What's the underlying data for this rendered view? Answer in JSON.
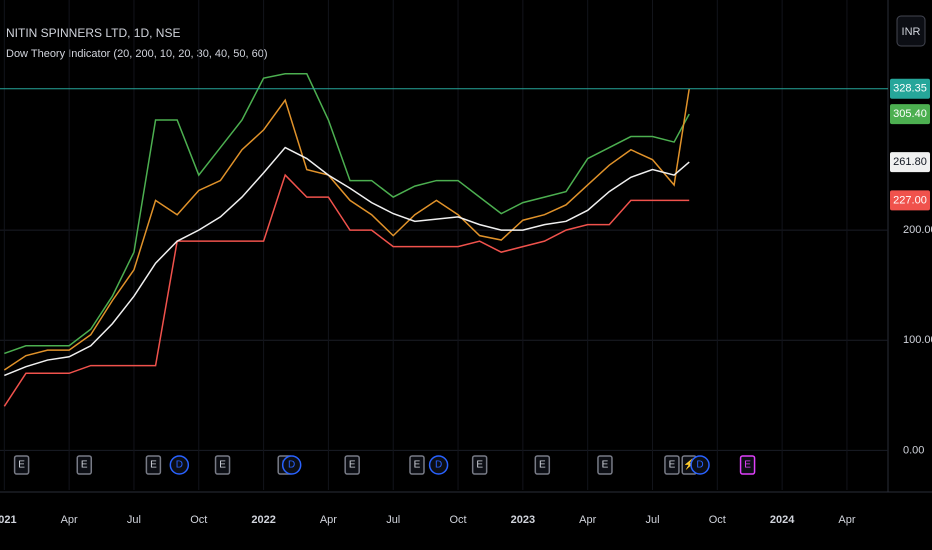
{
  "chart_data": {
    "type": "line",
    "title": "NITIN SPINNERS LTD, 1D, NSE",
    "subtitle": "Dow Theory Indicator (20, 200, 10, 20, 30, 40, 50, 60)",
    "currency": "INR",
    "x": [
      0,
      1,
      2,
      3,
      4,
      5,
      6,
      7,
      8,
      9,
      10,
      11,
      12,
      13,
      14,
      15,
      16,
      17,
      18,
      19,
      20,
      21,
      22,
      23,
      24,
      25,
      26,
      27,
      28,
      29,
      30,
      31,
      31.7
    ],
    "series": [
      {
        "color": "#4caf50",
        "values": [
          88,
          95,
          95,
          95,
          110,
          140,
          180,
          300,
          300,
          250,
          275,
          300,
          338,
          342,
          342,
          300,
          245,
          245,
          230,
          240,
          245,
          245,
          230,
          215,
          225,
          230,
          235,
          265,
          275,
          285,
          285,
          280,
          305.4
        ],
        "value_labels": [
          null,
          null,
          null,
          null,
          null,
          null,
          null,
          null,
          null,
          null,
          null,
          null,
          null,
          null,
          null,
          null,
          null,
          null,
          null,
          null,
          null,
          null,
          null,
          null,
          null,
          null,
          null,
          null,
          null,
          null,
          null,
          null,
          "305.40"
        ]
      },
      {
        "color": "#f0524c",
        "values": [
          40,
          70,
          70,
          70,
          77,
          77,
          77,
          77,
          190,
          190,
          190,
          190,
          190,
          250,
          230,
          230,
          200,
          200,
          185,
          185,
          185,
          185,
          190,
          180,
          185,
          190,
          200,
          205,
          205,
          227,
          227,
          227,
          227
        ],
        "value_labels": [
          null,
          null,
          null,
          null,
          null,
          null,
          null,
          null,
          null,
          null,
          null,
          null,
          null,
          null,
          null,
          null,
          null,
          null,
          null,
          null,
          null,
          null,
          null,
          null,
          null,
          null,
          null,
          null,
          null,
          null,
          null,
          null,
          "227.00"
        ]
      },
      {
        "color": "#e0922a",
        "values": [
          73,
          86,
          91,
          91,
          105,
          136,
          164,
          227,
          214,
          236,
          245,
          273,
          291,
          318,
          255,
          250,
          227,
          214,
          195,
          214,
          227,
          214,
          195,
          191,
          209,
          214,
          223,
          241,
          259,
          273,
          264,
          241,
          328.35
        ],
        "value_labels": [
          null,
          null,
          null,
          null,
          null,
          null,
          null,
          null,
          null,
          null,
          null,
          null,
          null,
          null,
          null,
          null,
          null,
          null,
          null,
          null,
          null,
          null,
          null,
          null,
          null,
          null,
          null,
          null,
          null,
          null,
          null,
          null,
          "328.35"
        ]
      },
      {
        "color": "#f0f0f0",
        "values": [
          68,
          76,
          82,
          85,
          95,
          115,
          140,
          170,
          190,
          200,
          212,
          230,
          252,
          275,
          265,
          250,
          238,
          225,
          215,
          208,
          210,
          212,
          205,
          200,
          200,
          205,
          208,
          218,
          235,
          248,
          255,
          250,
          261.8
        ],
        "value_labels": [
          null,
          null,
          null,
          null,
          null,
          null,
          null,
          null,
          null,
          null,
          null,
          null,
          null,
          null,
          null,
          null,
          null,
          null,
          null,
          null,
          null,
          null,
          null,
          null,
          null,
          null,
          null,
          null,
          null,
          null,
          null,
          null,
          "261.80"
        ]
      }
    ],
    "xlim": [
      -0.2,
      40.9
    ],
    "xticks": [
      {
        "value": 0,
        "label": "2021"
      },
      {
        "value": 3,
        "label": "Apr"
      },
      {
        "value": 6,
        "label": "Jul"
      },
      {
        "value": 9,
        "label": "Oct"
      },
      {
        "value": 12,
        "label": "2022"
      },
      {
        "value": 15,
        "label": "Apr"
      },
      {
        "value": 18,
        "label": "Jul"
      },
      {
        "value": 21,
        "label": "Oct"
      },
      {
        "value": 24,
        "label": "2023"
      },
      {
        "value": 27,
        "label": "Apr"
      },
      {
        "value": 30,
        "label": "Jul"
      },
      {
        "value": 33,
        "label": "Oct"
      },
      {
        "value": 36,
        "label": "2024"
      },
      {
        "value": 39,
        "label": "Apr"
      }
    ],
    "ylim": [
      -36,
      409
    ],
    "yticks": [
      {
        "value": 0,
        "label": "0.00"
      },
      {
        "value": 100,
        "label": "100.00"
      },
      {
        "value": 200,
        "label": "200.00"
      }
    ],
    "grid": true,
    "events": [
      {
        "x": 0.8,
        "label": "E"
      },
      {
        "x": 3.7,
        "label": "E"
      },
      {
        "x": 6.9,
        "label": "E"
      },
      {
        "x": 8.1,
        "label": "D"
      },
      {
        "x": 10.1,
        "label": "E"
      },
      {
        "x": 13.0,
        "label": "E"
      },
      {
        "x": 13.3,
        "label": "D"
      },
      {
        "x": 16.1,
        "label": "E"
      },
      {
        "x": 19.1,
        "label": "E"
      },
      {
        "x": 20.1,
        "label": "D"
      },
      {
        "x": 22.0,
        "label": "E"
      },
      {
        "x": 24.9,
        "label": "E"
      },
      {
        "x": 27.8,
        "label": "E"
      },
      {
        "x": 30.9,
        "label": "E"
      },
      {
        "x": 31.7,
        "label": "⚡"
      },
      {
        "x": 32.2,
        "label": "D"
      },
      {
        "x": 34.4,
        "label": "E"
      }
    ]
  }
}
